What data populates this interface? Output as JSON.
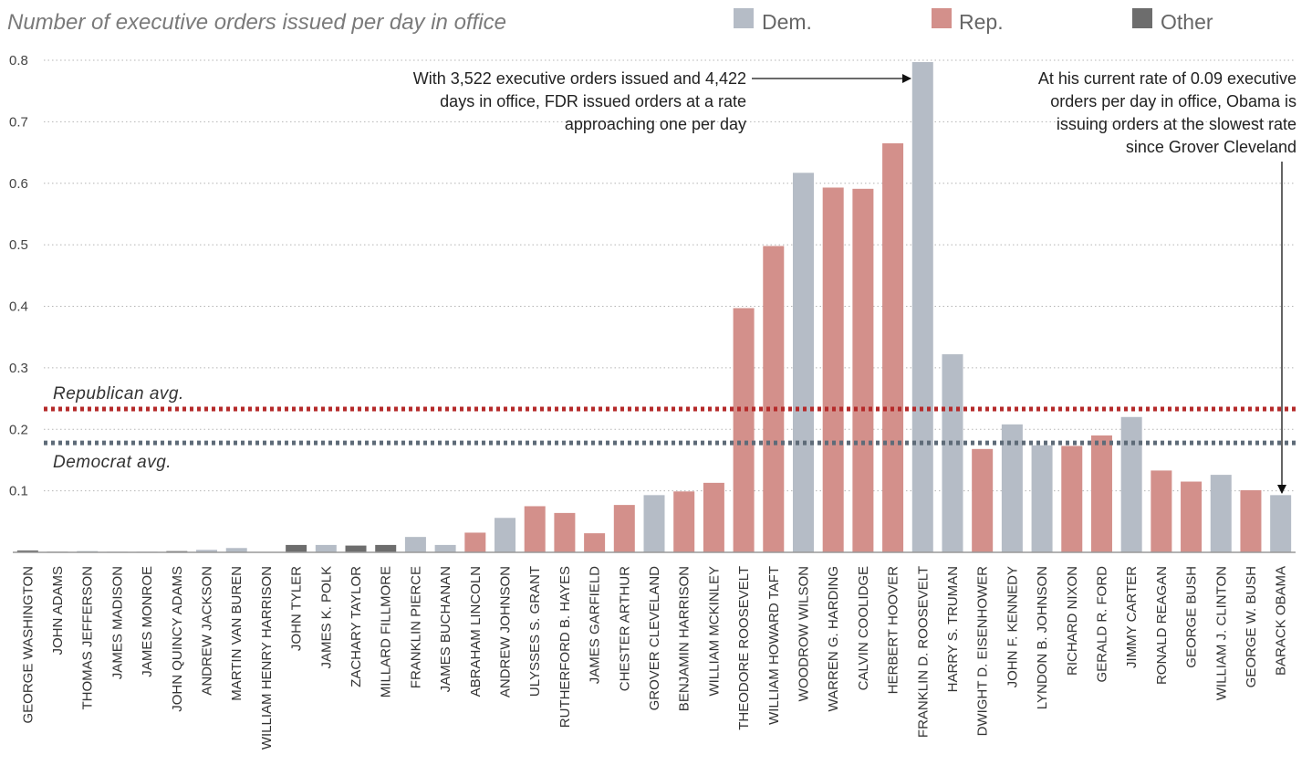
{
  "chart_data": {
    "type": "bar",
    "title": "Number of executive orders issued per day in office",
    "xlabel": "",
    "ylabel": "",
    "ylim": [
      0,
      0.8
    ],
    "yticks": [
      "0.8",
      "0.7",
      "0.6",
      "0.5",
      "0.4",
      "0.3",
      "0.2",
      "0.1"
    ],
    "ytick_values": [
      0.8,
      0.7,
      0.6,
      0.5,
      0.4,
      0.3,
      0.2,
      0.1
    ],
    "grid": true,
    "legend_position": "top-right",
    "legend": [
      {
        "label": "Dem.",
        "party": "D"
      },
      {
        "label": "Rep.",
        "party": "R"
      },
      {
        "label": "Other",
        "party": "O"
      }
    ],
    "colors": {
      "D": "#b5bcc6",
      "R": "#d3908b",
      "O": "#6d6d6d",
      "repAvg": "#b52a2a",
      "demAvg": "#5e6b78",
      "axis": "#999999"
    },
    "categories": [
      "GEORGE WASHINGTON",
      "JOHN ADAMS",
      "THOMAS JEFFERSON",
      "JAMES MADISON",
      "JAMES MONROE",
      "JOHN QUINCY ADAMS",
      "ANDREW JACKSON",
      "MARTIN VAN BUREN",
      "WILLIAM HENRY HARRISON",
      "JOHN TYLER",
      "JAMES K. POLK",
      "ZACHARY TAYLOR",
      "MILLARD FILLMORE",
      "FRANKLIN PIERCE",
      "JAMES BUCHANAN",
      "ABRAHAM LINCOLN",
      "ANDREW JOHNSON",
      "ULYSSES S. GRANT",
      "RUTHERFORD B. HAYES",
      "JAMES GARFIELD",
      "CHESTER ARTHUR",
      "GROVER CLEVELAND",
      "BENJAMIN HARRISON",
      "WILLIAM MCKINLEY",
      "THEODORE ROOSEVELT",
      "WILLIAM HOWARD TAFT",
      "WOODROW WILSON",
      "WARREN G. HARDING",
      "CALVIN COOLIDGE",
      "HERBERT HOOVER",
      "FRANKLIN D. ROOSEVELT",
      "HARRY S. TRUMAN",
      "DWIGHT D. EISENHOWER",
      "JOHN F. KENNEDY",
      "LYNDON B. JOHNSON",
      "RICHARD NIXON",
      "GERALD R. FORD",
      "JIMMY CARTER",
      "RONALD REAGAN",
      "GEORGE BUSH",
      "WILLIAM J. CLINTON",
      "GEORGE W. BUSH",
      "BARACK OBAMA"
    ],
    "values": [
      0.003,
      0.001,
      0.002,
      0.001,
      0.001,
      0.002,
      0.004,
      0.007,
      0.0,
      0.012,
      0.012,
      0.011,
      0.012,
      0.025,
      0.012,
      0.032,
      0.056,
      0.075,
      0.064,
      0.031,
      0.077,
      0.093,
      0.099,
      0.113,
      0.397,
      0.498,
      0.617,
      0.593,
      0.591,
      0.665,
      0.797,
      0.322,
      0.168,
      0.208,
      0.174,
      0.173,
      0.19,
      0.22,
      0.133,
      0.115,
      0.126,
      0.101,
      0.093
    ],
    "parties": [
      "O",
      "O",
      "D",
      "D",
      "D",
      "O",
      "D",
      "D",
      "O",
      "O",
      "D",
      "O",
      "O",
      "D",
      "D",
      "R",
      "D",
      "R",
      "R",
      "R",
      "R",
      "D",
      "R",
      "R",
      "R",
      "R",
      "D",
      "R",
      "R",
      "R",
      "D",
      "D",
      "R",
      "D",
      "D",
      "R",
      "R",
      "D",
      "R",
      "R",
      "D",
      "R",
      "D"
    ],
    "averages": [
      {
        "label": "Republican avg.",
        "value": 0.233,
        "party": "R"
      },
      {
        "label": "Democrat avg.",
        "value": 0.178,
        "party": "D"
      }
    ],
    "annotations": [
      {
        "lines": [
          "With 3,522 executive orders issued and 4,422",
          "days in office, FDR issued orders at a rate",
          "approaching one per day"
        ],
        "target": "FRANKLIN D. ROOSEVELT"
      },
      {
        "lines": [
          "At his current rate of 0.09 executive",
          "orders per day in office, Obama is",
          "issuing orders at the slowest rate",
          "since Grover Cleveland"
        ],
        "target": "BARACK OBAMA"
      }
    ]
  }
}
